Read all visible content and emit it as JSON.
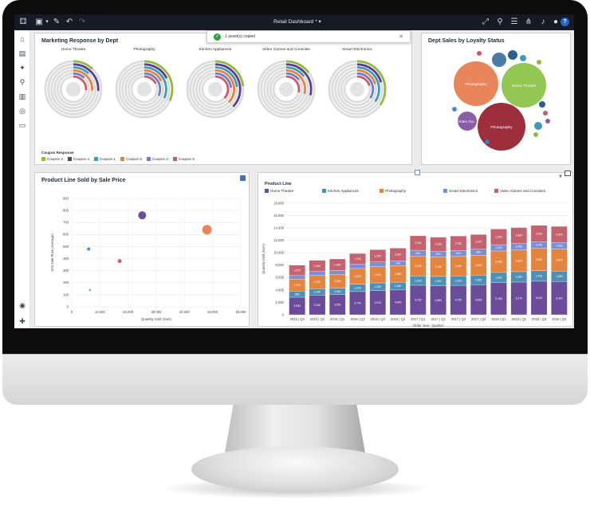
{
  "topbar": {
    "title": "Retail Dashboard *",
    "help_label": "?"
  },
  "toast": {
    "message": "1 asset(s) copied",
    "check": "✓",
    "close": "✕"
  },
  "marketing": {
    "title": "Marketing Response by Dept",
    "departments": [
      "Home Theatre",
      "Photography",
      "Kitchen Appliances",
      "Video Games and Consoles",
      "Smart Electronics"
    ],
    "legend_title": "Coupon Response",
    "legend": [
      {
        "label": "Coupon 2",
        "color": "#8fbc3a"
      },
      {
        "label": "Coupon 4",
        "color": "#5b3e8c"
      },
      {
        "label": "Coupon 1",
        "color": "#3d9bb8"
      },
      {
        "label": "Coupon 5",
        "color": "#e2843b"
      },
      {
        "label": "Coupon 3",
        "color": "#6b7fd0"
      },
      {
        "label": "Coupon 6",
        "color": "#c95a6a"
      }
    ]
  },
  "loyalty": {
    "title": "Dept Sales by Loyalty Status",
    "bubbles": [
      {
        "label": "Photography",
        "color": "#e8855a"
      },
      {
        "label": "Home Theatre",
        "color": "#93c653"
      },
      {
        "label": "Photography",
        "color": "#9d2f3d"
      },
      {
        "label": "Video Ga...",
        "color": "#8b5ca8"
      },
      {
        "label": "Video Gam...",
        "color": "#4a7ca6"
      }
    ]
  },
  "scatter": {
    "title": "Product Line Sold by Sale Price",
    "xlabel": "Quantity Sold (Sum)",
    "ylabel": "Unit Sale Price (Average)"
  },
  "stacked": {
    "legend_title": "Product Line",
    "xlabel": "Order Year - Quarter",
    "ylabel": "Quantity Sold (Sum)"
  },
  "chart_data": [
    {
      "type": "scatter",
      "title": "Product Line Sold by Sale Price",
      "xlabel": "Quantity Sold (Sum)",
      "ylabel": "Unit Sale Price (Average)",
      "xlim": [
        0,
        60000
      ],
      "ylim": [
        0,
        900
      ],
      "x_ticks": [
        "0",
        "10,000",
        "20,000",
        "30,000",
        "40,000",
        "50,000",
        "60,000"
      ],
      "y_ticks": [
        "0",
        "100",
        "200",
        "300",
        "400",
        "500",
        "600",
        "700",
        "800",
        "900"
      ],
      "points": [
        {
          "x": 25000,
          "y": 760,
          "color": "#6d4f9a",
          "size": 5
        },
        {
          "x": 48000,
          "y": 640,
          "color": "#e8855a",
          "size": 6
        },
        {
          "x": 6000,
          "y": 480,
          "color": "#4a8ec4",
          "size": 2
        },
        {
          "x": 17000,
          "y": 380,
          "color": "#d05f6f",
          "size": 2.5
        },
        {
          "x": 6500,
          "y": 140,
          "color": "#7fb0d8",
          "size": 1.5
        }
      ]
    },
    {
      "type": "bar",
      "stacked": true,
      "title": "Product Line",
      "xlabel": "Order Year - Quarter",
      "ylabel": "Quantity Sold (Sum)",
      "ylim": [
        0,
        18000
      ],
      "y_ticks": [
        "0",
        "2,000",
        "4,000",
        "6,000",
        "8,000",
        "10,000",
        "12,000",
        "14,000",
        "16,000",
        "18,000"
      ],
      "categories": [
        "2015 | Q3",
        "2015 | Q4",
        "2016 | Q1",
        "2016 | Q2",
        "2016 | Q3",
        "2016 | Q4",
        "2017 | Q1",
        "2017 | Q2",
        "2017 | Q3",
        "2017 | Q4",
        "2018 | Q1",
        "2018 | Q2",
        "2018 | Q3",
        "2018 | Q4"
      ],
      "series": [
        {
          "name": "Home Theatre",
          "color": "#6b4c9a",
          "values": [
            2830,
            3160,
            3250,
            3740,
            3910,
            4000,
            4760,
            4680,
            4750,
            4830,
            5180,
            5270,
            5410,
            5350
          ]
        },
        {
          "name": "Kitchen Appliances",
          "color": "#4e8fb5",
          "values": [
            985,
            1050,
            1060,
            1200,
            1230,
            1260,
            1520,
            1500,
            1520,
            1560,
            1650,
            1680,
            1700,
            1680
          ]
        },
        {
          "name": "Photography",
          "color": "#e3843f",
          "values": [
            1930,
            2120,
            2180,
            2520,
            2610,
            2680,
            3190,
            3130,
            3180,
            3230,
            3460,
            3520,
            3610,
            3570
          ]
        },
        {
          "name": "Smart Electronics",
          "color": "#7b8fd4",
          "values": [
            580,
            640,
            650,
            730,
            760,
            780,
            940,
            920,
            940,
            960,
            1020,
            1040,
            1070,
            1060
          ]
        },
        {
          "name": "Video Games and Consoles",
          "color": "#c4626f",
          "values": [
            1675,
            1820,
            1860,
            1700,
            1990,
            2030,
            2330,
            2290,
            2320,
            2370,
            2520,
            2560,
            2630,
            2600
          ]
        }
      ]
    }
  ]
}
